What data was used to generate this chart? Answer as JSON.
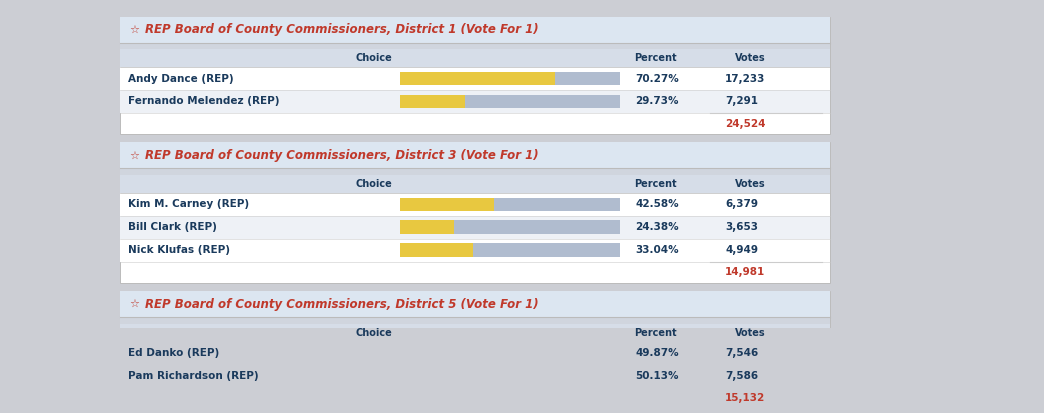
{
  "bg_color": "#ccced4",
  "panel_color": "#ffffff",
  "title_bg": "#dce6f1",
  "header_bg": "#d6dde8",
  "row_alt_bg": "#eef1f6",
  "row_bg": "#ffffff",
  "title_color": "#c0392b",
  "header_text_color": "#1a3a5c",
  "row_text_color": "#1a3a5c",
  "total_color": "#c0392b",
  "bar_yellow": "#e8c840",
  "bar_blue": "#b0bccf",
  "star_color": "#c0392b",
  "fig_width": 10.24,
  "fig_height": 3.89,
  "sections": [
    {
      "title": "REP Board of County Commissioners, District 1 (Vote For 1)",
      "rows": [
        {
          "name": "Andy Dance (REP)",
          "percent": 70.27,
          "percent_str": "70.27%",
          "votes": "17,233"
        },
        {
          "name": "Fernando Melendez (REP)",
          "percent": 29.73,
          "percent_str": "29.73%",
          "votes": "7,291"
        }
      ],
      "total": "24,524"
    },
    {
      "title": "REP Board of County Commissioners, District 3 (Vote For 1)",
      "rows": [
        {
          "name": "Kim M. Carney (REP)",
          "percent": 42.58,
          "percent_str": "42.58%",
          "votes": "6,379"
        },
        {
          "name": "Bill Clark (REP)",
          "percent": 24.38,
          "percent_str": "24.38%",
          "votes": "3,653"
        },
        {
          "name": "Nick Klufas (REP)",
          "percent": 33.04,
          "percent_str": "33.04%",
          "votes": "4,949"
        }
      ],
      "total": "14,981"
    },
    {
      "title": "REP Board of County Commissioners, District 5 (Vote For 1)",
      "rows": [
        {
          "name": "Ed Danko (REP)",
          "percent": 49.87,
          "percent_str": "49.87%",
          "votes": "7,546"
        },
        {
          "name": "Pam Richardson (REP)",
          "percent": 50.13,
          "percent_str": "50.13%",
          "votes": "7,586"
        }
      ],
      "total": "15,132"
    }
  ]
}
